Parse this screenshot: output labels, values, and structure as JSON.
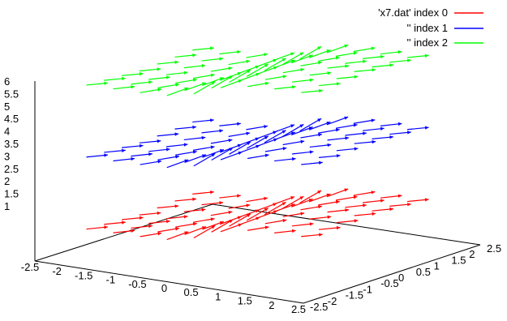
{
  "chart_data": {
    "type": "vector-3d",
    "legend_position": "top-right",
    "legend": [
      {
        "label": "'x7.dat' index 0",
        "color": "#ff0000"
      },
      {
        "label": "'' index 1",
        "color": "#0000ff"
      },
      {
        "label": "'' index 2",
        "color": "#00ff00"
      }
    ],
    "x_ticks": [
      "-2.5",
      "-2",
      "-1.5",
      "-1",
      "-0.5",
      "0",
      "0.5",
      "1",
      "1.5",
      "2",
      "2.5"
    ],
    "y_ticks": [
      "-2.5",
      "-2",
      "-1.5",
      "-1",
      "-0.5",
      "0",
      "0.5",
      "1",
      "1.5",
      "2",
      "2.5"
    ],
    "z_ticks": [
      "1",
      "1.5",
      "2",
      "2.5",
      "3",
      "3.5",
      "4",
      "4.5",
      "5",
      "5.5",
      "6"
    ],
    "xlim": [
      -2.5,
      2.5
    ],
    "ylim": [
      -2.5,
      2.5
    ],
    "zlim": [
      1,
      6
    ],
    "grid": false,
    "series": [
      {
        "index": 0,
        "z": 2,
        "color": "#ff0000"
      },
      {
        "index": 1,
        "z": 4,
        "color": "#0000ff"
      },
      {
        "index": 2,
        "z": 6,
        "color": "#00ff00"
      }
    ]
  }
}
